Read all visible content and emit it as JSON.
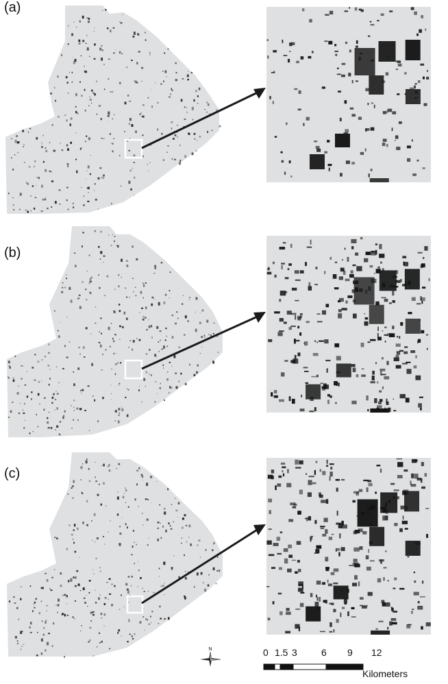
{
  "panels": [
    {
      "label": "(a)"
    },
    {
      "label": "(b)"
    },
    {
      "label": "(c)"
    }
  ],
  "colors": {
    "background": "#ffffff",
    "land": "#dfe0e2",
    "feature": "#141414",
    "arrow": "#1a1a1a",
    "highlight_box": "#ffffff"
  },
  "north_arrow": {
    "label": "N"
  },
  "scale_bar": {
    "ticks": [
      "0",
      "1.5",
      "3",
      "6",
      "9",
      "12"
    ],
    "unit": "Kilometers"
  },
  "icons": {
    "north_arrow": "compass-rose-icon",
    "scale_bar": "scale-bar-icon"
  }
}
